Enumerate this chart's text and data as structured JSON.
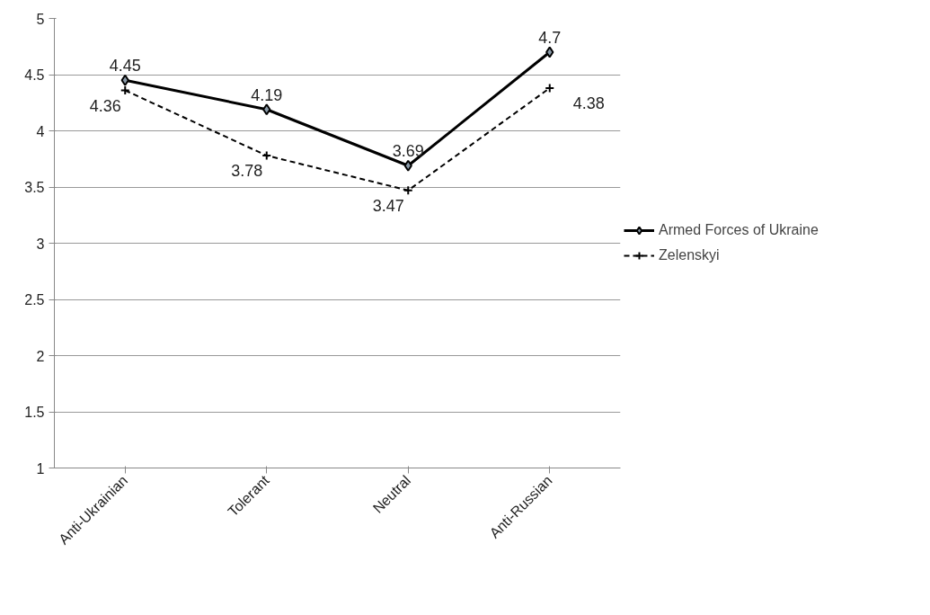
{
  "chart_data": {
    "type": "line",
    "categories": [
      "Anti-Ukrainian",
      "Tolerant",
      "Neutral",
      "Anti-Russian"
    ],
    "series": [
      {
        "name": "Armed Forces of Ukraine",
        "color": "#000000",
        "values": [
          4.45,
          4.19,
          3.69,
          4.7
        ],
        "marker": "diamond",
        "line_style": "solid"
      },
      {
        "name": "Zelenskyi",
        "color": "#000000",
        "values": [
          4.36,
          3.78,
          3.47,
          4.38
        ],
        "marker": "cross",
        "line_style": "dashed"
      }
    ],
    "ylim": [
      1,
      5
    ],
    "yticks": [
      1,
      1.5,
      2,
      2.5,
      3,
      3.5,
      4,
      4.5,
      5
    ],
    "grid": "y",
    "legend": "right",
    "data_labels": true
  }
}
